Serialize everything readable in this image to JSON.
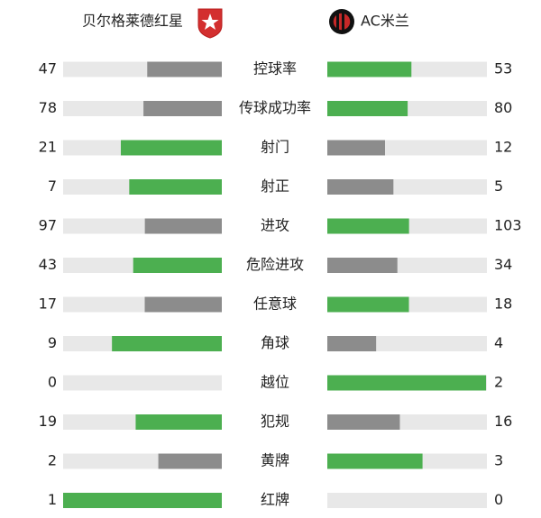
{
  "home": {
    "name": "贝尔格莱德红星"
  },
  "away": {
    "name": "AC米兰"
  },
  "colors": {
    "win": "#4caf50",
    "lose": "#8c8c8c",
    "track": "#e8e8e8"
  },
  "stats": [
    {
      "label": "控球率",
      "home": 47,
      "away": 53
    },
    {
      "label": "传球成功率",
      "home": 78,
      "away": 80
    },
    {
      "label": "射门",
      "home": 21,
      "away": 12
    },
    {
      "label": "射正",
      "home": 7,
      "away": 5
    },
    {
      "label": "进攻",
      "home": 97,
      "away": 103
    },
    {
      "label": "危险进攻",
      "home": 43,
      "away": 34
    },
    {
      "label": "任意球",
      "home": 17,
      "away": 18
    },
    {
      "label": "角球",
      "home": 9,
      "away": 4
    },
    {
      "label": "越位",
      "home": 0,
      "away": 2
    },
    {
      "label": "犯规",
      "home": 19,
      "away": 16
    },
    {
      "label": "黄牌",
      "home": 2,
      "away": 3
    },
    {
      "label": "红牌",
      "home": 1,
      "away": 0
    }
  ]
}
